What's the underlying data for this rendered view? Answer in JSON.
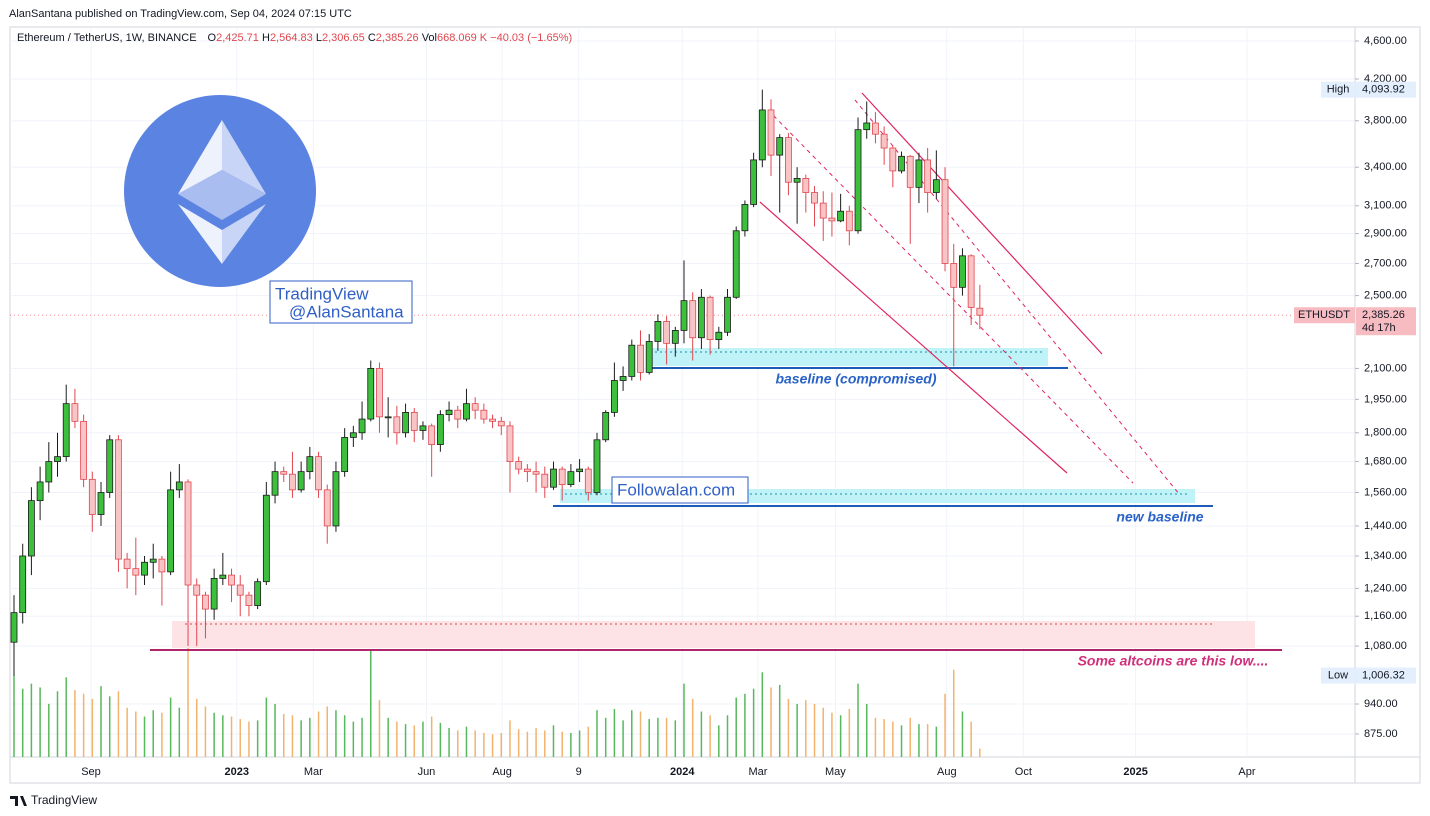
{
  "header": {
    "published": "AlanSantana published on TradingView.com, Sep 04, 2024 07:15 UTC"
  },
  "footer": {
    "brand": "TradingView"
  },
  "chart_data": {
    "type": "candlestick",
    "title": "Ethereum / TetherUS, 1W, BINANCE",
    "legend_values": [
      {
        "key": "O",
        "label": "2,425.71"
      },
      {
        "key": "H",
        "label": "2,564.83"
      },
      {
        "key": "L",
        "label": "2,306.65"
      },
      {
        "key": "C",
        "label": "2,385.26"
      },
      {
        "key": "Vol",
        "label": "668.069 K"
      }
    ],
    "change": "−40.03 (−1.65%)",
    "log_scale": true,
    "grid": true,
    "up_color": "#3cbf3c",
    "down_color": "#f9c4c6",
    "down_border": "#e0474f",
    "up_border": "#1b1b1b",
    "volume_up_color": "#58b85c",
    "volume_down_color": "#f2b36e",
    "xlim": [
      -0.46,
      154
    ],
    "xticks": [
      {
        "value": 8.85,
        "label": "Sep"
      },
      {
        "value": 25.6,
        "label": "2023"
      },
      {
        "value": 34.4,
        "label": "Mar"
      },
      {
        "value": 47.4,
        "label": "Jun"
      },
      {
        "value": 56.1,
        "label": "Aug"
      },
      {
        "value": 64.9,
        "label": "9"
      },
      {
        "value": 76.8,
        "label": "2024"
      },
      {
        "value": 85.5,
        "label": "Mar"
      },
      {
        "value": 94.4,
        "label": "May"
      },
      {
        "value": 107.2,
        "label": "Aug"
      },
      {
        "value": 116,
        "label": "Oct"
      },
      {
        "value": 128.9,
        "label": "2025"
      },
      {
        "value": 141.7,
        "label": "Apr"
      }
    ],
    "ylim": [
      828,
      4757
    ],
    "yticks": [
      {
        "value": 4600,
        "label": "4,600.00"
      },
      {
        "value": 4200,
        "label": "4,200.00"
      },
      {
        "value": 3800,
        "label": "3,800.00"
      },
      {
        "value": 3400,
        "label": "3,400.00"
      },
      {
        "value": 3100,
        "label": "3,100.00"
      },
      {
        "value": 2900,
        "label": "2,900.00"
      },
      {
        "value": 2700,
        "label": "2,700.00"
      },
      {
        "value": 2500,
        "label": "2,500.00"
      },
      {
        "value": 2100,
        "label": "2,100.00"
      },
      {
        "value": 1950,
        "label": "1,950.00"
      },
      {
        "value": 1800,
        "label": "1,800.00"
      },
      {
        "value": 1680,
        "label": "1,680.00"
      },
      {
        "value": 1560,
        "label": "1,560.00"
      },
      {
        "value": 1440,
        "label": "1,440.00"
      },
      {
        "value": 1340,
        "label": "1,340.00"
      },
      {
        "value": 1240,
        "label": "1,240.00"
      },
      {
        "value": 1160,
        "label": "1,160.00"
      },
      {
        "value": 1080,
        "label": "1,080.00"
      },
      {
        "value": 940,
        "label": "940.00"
      },
      {
        "value": 875,
        "label": "875.00"
      }
    ],
    "price_labels": [
      {
        "name": "High",
        "value": 4093.92,
        "label": "4,093.92"
      },
      {
        "name": "Low",
        "value": 1006.32,
        "label": "1,006.32"
      }
    ],
    "last_price": {
      "name": "ETHUSDT",
      "value": 2385.26,
      "label": "2,385.26",
      "countdown": "4d 17h"
    },
    "annotations": {
      "watermark": "TradingView",
      "handle": "@AlanSantana",
      "site": "Followalan.com",
      "baseline": "baseline (compromised)",
      "new_baseline": "new baseline",
      "altcoins": "Some altcoins are this low...."
    },
    "open": [
      1090,
      1170,
      1340,
      1530,
      1600,
      1680,
      1700,
      1930,
      1850,
      1610,
      1480,
      1560,
      1770,
      1330,
      1300,
      1280,
      1320,
      1330,
      1290,
      1570,
      1600,
      1250,
      1220,
      1180,
      1270,
      1280,
      1250,
      1220,
      1190,
      1260,
      1550,
      1640,
      1630,
      1570,
      1640,
      1700,
      1570,
      1440,
      1640,
      1780,
      1800,
      1860,
      2100,
      1870,
      1870,
      1800,
      1890,
      1810,
      1830,
      1750,
      1880,
      1900,
      1860,
      1930,
      1900,
      1860,
      1850,
      1830,
      1680,
      1650,
      1640,
      1630,
      1580,
      1650,
      1590,
      1640,
      1650,
      1560,
      1770,
      1890,
      2040,
      2060,
      2220,
      2080,
      2240,
      2350,
      2230,
      2300,
      2470,
      2260,
      2490,
      2250,
      2290,
      2490,
      2920,
      3110,
      3460,
      3900,
      3500,
      3650,
      3280,
      3310,
      3200,
      3120,
      3010,
      2990,
      3060,
      2920,
      3720,
      3780,
      3680,
      3560,
      3370,
      3490,
      3240,
      3460,
      3200,
      3300,
      2700,
      2550,
      2750,
      2425.71
    ],
    "high": [
      1220,
      1380,
      1580,
      1660,
      1760,
      1800,
      2020,
      2000,
      1880,
      1640,
      1600,
      1790,
      1790,
      1350,
      1400,
      1340,
      1380,
      1340,
      1640,
      1670,
      1610,
      1270,
      1230,
      1300,
      1350,
      1300,
      1280,
      1230,
      1270,
      1600,
      1680,
      1660,
      1720,
      1680,
      1740,
      1720,
      1590,
      1680,
      1820,
      1830,
      1940,
      2140,
      2130,
      1960,
      1920,
      1930,
      1910,
      1850,
      1840,
      1900,
      1940,
      1920,
      2000,
      1960,
      1930,
      1880,
      1870,
      1850,
      1700,
      1670,
      1680,
      1660,
      1680,
      1660,
      1670,
      1690,
      1660,
      1800,
      1900,
      2130,
      2110,
      2250,
      2300,
      2280,
      2390,
      2380,
      2320,
      2720,
      2520,
      2540,
      2500,
      2320,
      2540,
      2950,
      3140,
      3520,
      4093.92,
      4000,
      3680,
      3690,
      3400,
      3340,
      3250,
      3210,
      3200,
      3190,
      3100,
      3830,
      3980,
      3880,
      3750,
      3580,
      3530,
      3500,
      3520,
      3560,
      3540,
      3400,
      2830,
      2800,
      2760,
      2564.83
    ],
    "low": [
      1006.32,
      1140,
      1280,
      1460,
      1560,
      1620,
      1680,
      1820,
      1580,
      1420,
      1440,
      1540,
      1290,
      1240,
      1220,
      1250,
      1270,
      1190,
      1280,
      1540,
      1080,
      1080,
      1100,
      1150,
      1250,
      1200,
      1160,
      1160,
      1180,
      1250,
      1520,
      1600,
      1540,
      1560,
      1610,
      1540,
      1380,
      1420,
      1620,
      1740,
      1770,
      1850,
      1800,
      1780,
      1750,
      1780,
      1760,
      1770,
      1620,
      1720,
      1850,
      1820,
      1850,
      1860,
      1840,
      1820,
      1790,
      1560,
      1630,
      1600,
      1560,
      1540,
      1570,
      1530,
      1580,
      1600,
      1530,
      1550,
      1760,
      1870,
      1990,
      2040,
      2040,
      2070,
      2190,
      2120,
      2160,
      2230,
      2140,
      2200,
      2170,
      2200,
      2270,
      2480,
      2880,
      3090,
      3400,
      3330,
      3050,
      3180,
      2970,
      3050,
      2950,
      2850,
      2880,
      2980,
      2820,
      2900,
      3640,
      3600,
      3420,
      3240,
      3350,
      2830,
      3120,
      3050,
      3150,
      2650,
      2110,
      2500,
      2330,
      2306.65
    ],
    "close": [
      1170,
      1340,
      1530,
      1600,
      1680,
      1700,
      1930,
      1850,
      1610,
      1480,
      1560,
      1770,
      1330,
      1300,
      1280,
      1320,
      1330,
      1290,
      1570,
      1600,
      1250,
      1220,
      1180,
      1270,
      1280,
      1250,
      1220,
      1190,
      1260,
      1550,
      1640,
      1630,
      1570,
      1640,
      1700,
      1570,
      1440,
      1640,
      1780,
      1800,
      1860,
      2100,
      1870,
      1870,
      1800,
      1890,
      1810,
      1830,
      1750,
      1880,
      1900,
      1860,
      1930,
      1900,
      1860,
      1850,
      1830,
      1680,
      1650,
      1640,
      1630,
      1580,
      1650,
      1590,
      1640,
      1650,
      1560,
      1770,
      1890,
      2040,
      2060,
      2220,
      2080,
      2240,
      2350,
      2230,
      2300,
      2470,
      2260,
      2490,
      2250,
      2290,
      2490,
      2920,
      3110,
      3460,
      3900,
      3500,
      3650,
      3280,
      3310,
      3200,
      3120,
      3010,
      2990,
      3060,
      2920,
      3720,
      3780,
      3680,
      3560,
      3370,
      3490,
      3240,
      3460,
      3200,
      3300,
      2700,
      2550,
      2750,
      2430,
      2385.26
    ],
    "volume": [
      6500,
      5400,
      5800,
      5500,
      4200,
      5200,
      6300,
      5300,
      5000,
      4600,
      5600,
      4800,
      5200,
      3900,
      3600,
      3200,
      3700,
      3500,
      4700,
      3900,
      8700,
      4600,
      4000,
      3500,
      3300,
      3200,
      3000,
      2800,
      2900,
      4700,
      4200,
      3400,
      3300,
      2900,
      3100,
      3600,
      4000,
      3700,
      3300,
      2800,
      3100,
      8500,
      4500,
      3100,
      2800,
      2600,
      2500,
      2800,
      3200,
      2700,
      2300,
      2100,
      2400,
      2100,
      1900,
      1800,
      1900,
      2900,
      2200,
      2000,
      2300,
      2100,
      2500,
      2000,
      1900,
      2100,
      2400,
      3700,
      3100,
      3800,
      2900,
      3700,
      3600,
      3000,
      3100,
      3100,
      2900,
      5800,
      4600,
      3600,
      3300,
      2500,
      3300,
      4700,
      5000,
      5400,
      6700,
      5500,
      5700,
      4600,
      4200,
      4500,
      4200,
      3900,
      3500,
      3300,
      3800,
      5800,
      4200,
      3100,
      3000,
      2800,
      2500,
      3100,
      2600,
      2600,
      2400,
      5000,
      6900,
      3600,
      2800,
      668.069
    ]
  }
}
